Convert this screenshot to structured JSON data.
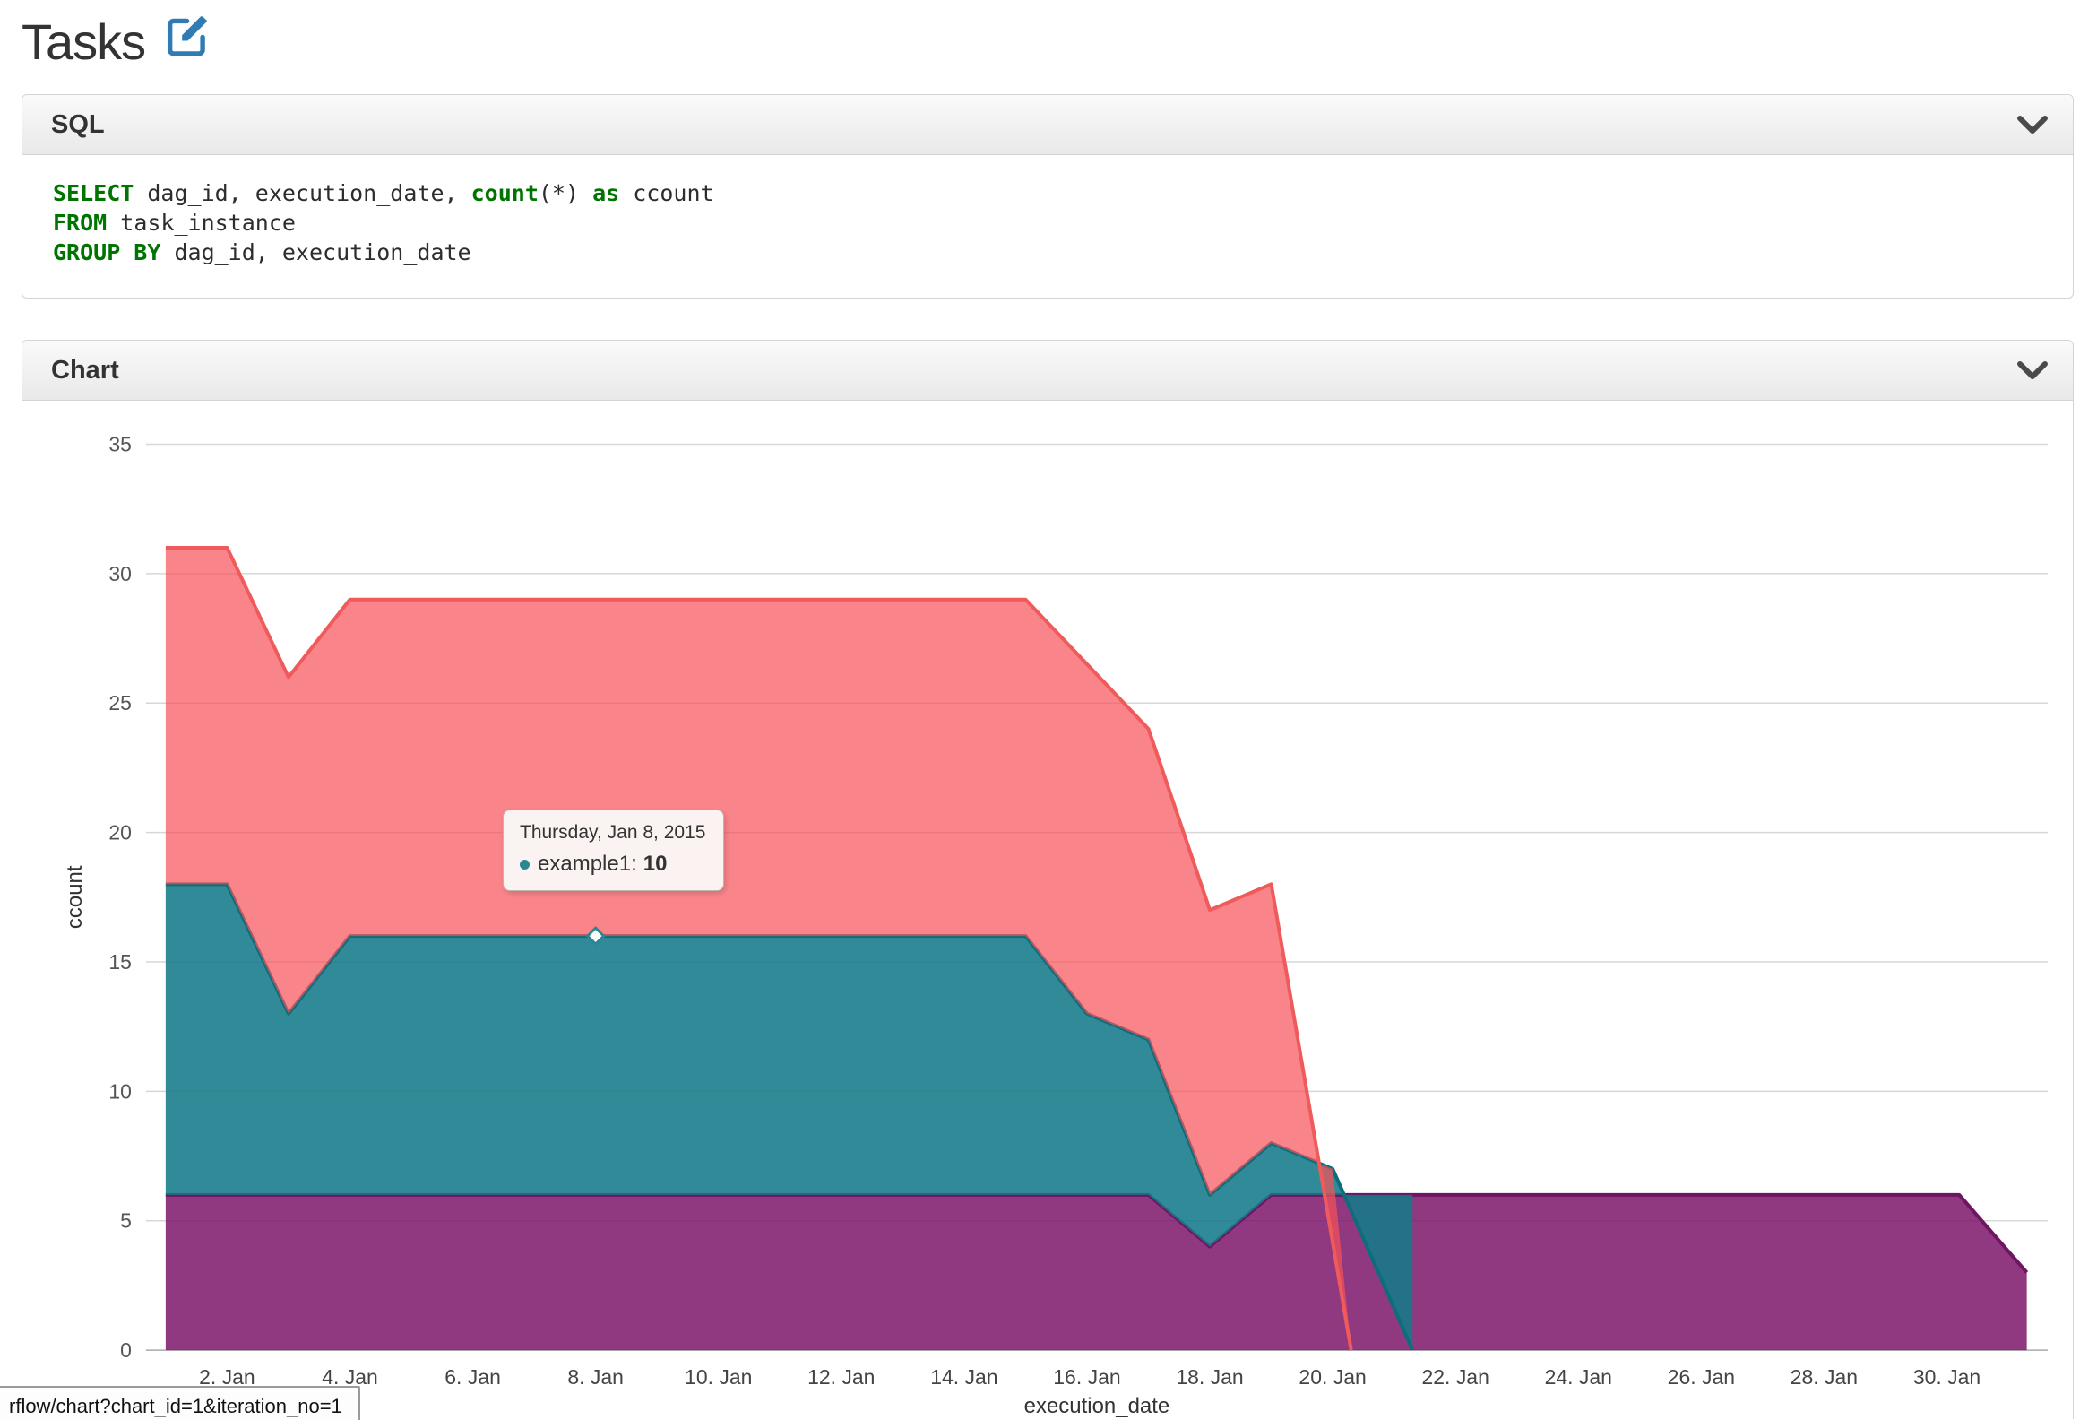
{
  "page": {
    "title": "Tasks"
  },
  "status_bar": {
    "text": "rflow/chart?chart_id=1&iteration_no=1"
  },
  "panels": {
    "sql": {
      "title": "SQL",
      "code_lines": [
        {
          "segments": [
            {
              "text": "SELECT",
              "type": "keyword"
            },
            {
              "text": " dag_id, execution_date, ",
              "type": "plain"
            },
            {
              "text": "count",
              "type": "keyword"
            },
            {
              "text": "(*) ",
              "type": "plain"
            },
            {
              "text": "as",
              "type": "keyword"
            },
            {
              "text": " ccount",
              "type": "plain"
            }
          ]
        },
        {
          "segments": [
            {
              "text": "FROM",
              "type": "keyword"
            },
            {
              "text": " task_instance",
              "type": "plain"
            }
          ]
        },
        {
          "segments": [
            {
              "text": "GROUP BY",
              "type": "keyword"
            },
            {
              "text": " dag_id, execution_date",
              "type": "plain"
            }
          ]
        }
      ]
    },
    "chart": {
      "title": "Chart"
    }
  },
  "chart_data": {
    "type": "area",
    "stacked": true,
    "title": "",
    "xlabel": "execution_date",
    "ylabel": "ccount",
    "ylim": [
      0,
      35
    ],
    "yticks": [
      0,
      5,
      10,
      15,
      20,
      25,
      30,
      35
    ],
    "xticks": [
      {
        "day": 2,
        "label": "2. Jan"
      },
      {
        "day": 4,
        "label": "4. Jan"
      },
      {
        "day": 6,
        "label": "6. Jan"
      },
      {
        "day": 8,
        "label": "8. Jan"
      },
      {
        "day": 10,
        "label": "10. Jan"
      },
      {
        "day": 12,
        "label": "12. Jan"
      },
      {
        "day": 14,
        "label": "14. Jan"
      },
      {
        "day": 16,
        "label": "16. Jan"
      },
      {
        "day": 18,
        "label": "18. Jan"
      },
      {
        "day": 20,
        "label": "20. Jan"
      },
      {
        "day": 22,
        "label": "22. Jan"
      },
      {
        "day": 24,
        "label": "24. Jan"
      },
      {
        "day": 26,
        "label": "26. Jan"
      },
      {
        "day": 28,
        "label": "28. Jan"
      },
      {
        "day": 30,
        "label": "30. Jan"
      }
    ],
    "x_domain_days": [
      1,
      31.3
    ],
    "points_are": "cumulative_stack_top_values_per_day_of_Jan_2015",
    "series": [
      {
        "id": "purple",
        "label": "",
        "color_fill": "#7c166a",
        "fill_opacity": 0.85,
        "color_line": "#6e1662",
        "top_line": [
          [
            1,
            6
          ],
          [
            17,
            6
          ],
          [
            18,
            4
          ],
          [
            19,
            6
          ],
          [
            30.2,
            6
          ],
          [
            31.3,
            3
          ]
        ],
        "polygon": [
          [
            1,
            6
          ],
          [
            17,
            6
          ],
          [
            18,
            4
          ],
          [
            19,
            6
          ],
          [
            30.2,
            6
          ],
          [
            31.3,
            3
          ],
          [
            31.3,
            0
          ],
          [
            1,
            0
          ]
        ]
      },
      {
        "id": "teal",
        "label": "example1",
        "color_fill": "#157a89",
        "fill_opacity": 0.88,
        "color_line": "#0d6d7c",
        "top_line": [
          [
            1,
            18
          ],
          [
            2,
            18
          ],
          [
            3,
            13
          ],
          [
            4,
            16
          ],
          [
            15,
            16
          ],
          [
            16,
            13
          ],
          [
            17,
            12
          ],
          [
            18,
            6
          ],
          [
            19,
            8
          ],
          [
            20,
            7
          ],
          [
            21.3,
            0
          ]
        ],
        "polygon": [
          [
            1,
            18
          ],
          [
            2,
            18
          ],
          [
            3,
            13
          ],
          [
            4,
            16
          ],
          [
            15,
            16
          ],
          [
            16,
            13
          ],
          [
            17,
            12
          ],
          [
            18,
            6
          ],
          [
            19,
            8
          ],
          [
            20,
            7
          ],
          [
            21.3,
            0
          ],
          [
            21.3,
            6
          ],
          [
            19,
            6
          ],
          [
            18,
            4
          ],
          [
            17,
            6
          ],
          [
            1,
            6
          ]
        ]
      },
      {
        "id": "red",
        "label": "",
        "color_fill": "#f65159",
        "fill_opacity": 0.7,
        "color_line": "#ef5a5a",
        "top_line": [
          [
            1,
            31
          ],
          [
            2,
            31
          ],
          [
            3,
            26
          ],
          [
            4,
            29
          ],
          [
            15,
            29
          ],
          [
            17,
            24
          ],
          [
            18,
            17
          ],
          [
            19,
            18
          ],
          [
            20.3,
            0
          ]
        ],
        "polygon": [
          [
            1,
            31
          ],
          [
            2,
            31
          ],
          [
            3,
            26
          ],
          [
            4,
            29
          ],
          [
            15,
            29
          ],
          [
            17,
            24
          ],
          [
            18,
            17
          ],
          [
            19,
            18
          ],
          [
            20.3,
            0
          ],
          [
            20,
            7
          ],
          [
            19,
            8
          ],
          [
            18,
            6
          ],
          [
            17,
            12
          ],
          [
            16,
            13
          ],
          [
            15,
            16
          ],
          [
            4,
            16
          ],
          [
            3,
            13
          ],
          [
            2,
            18
          ],
          [
            1,
            18
          ]
        ]
      }
    ],
    "tooltip": {
      "date_label": "Thursday, Jan 8, 2015",
      "series_label": "example1:",
      "value": "10",
      "marker_day": 8,
      "marker_stack_value": 16,
      "marker_color": "#2c8794"
    }
  }
}
